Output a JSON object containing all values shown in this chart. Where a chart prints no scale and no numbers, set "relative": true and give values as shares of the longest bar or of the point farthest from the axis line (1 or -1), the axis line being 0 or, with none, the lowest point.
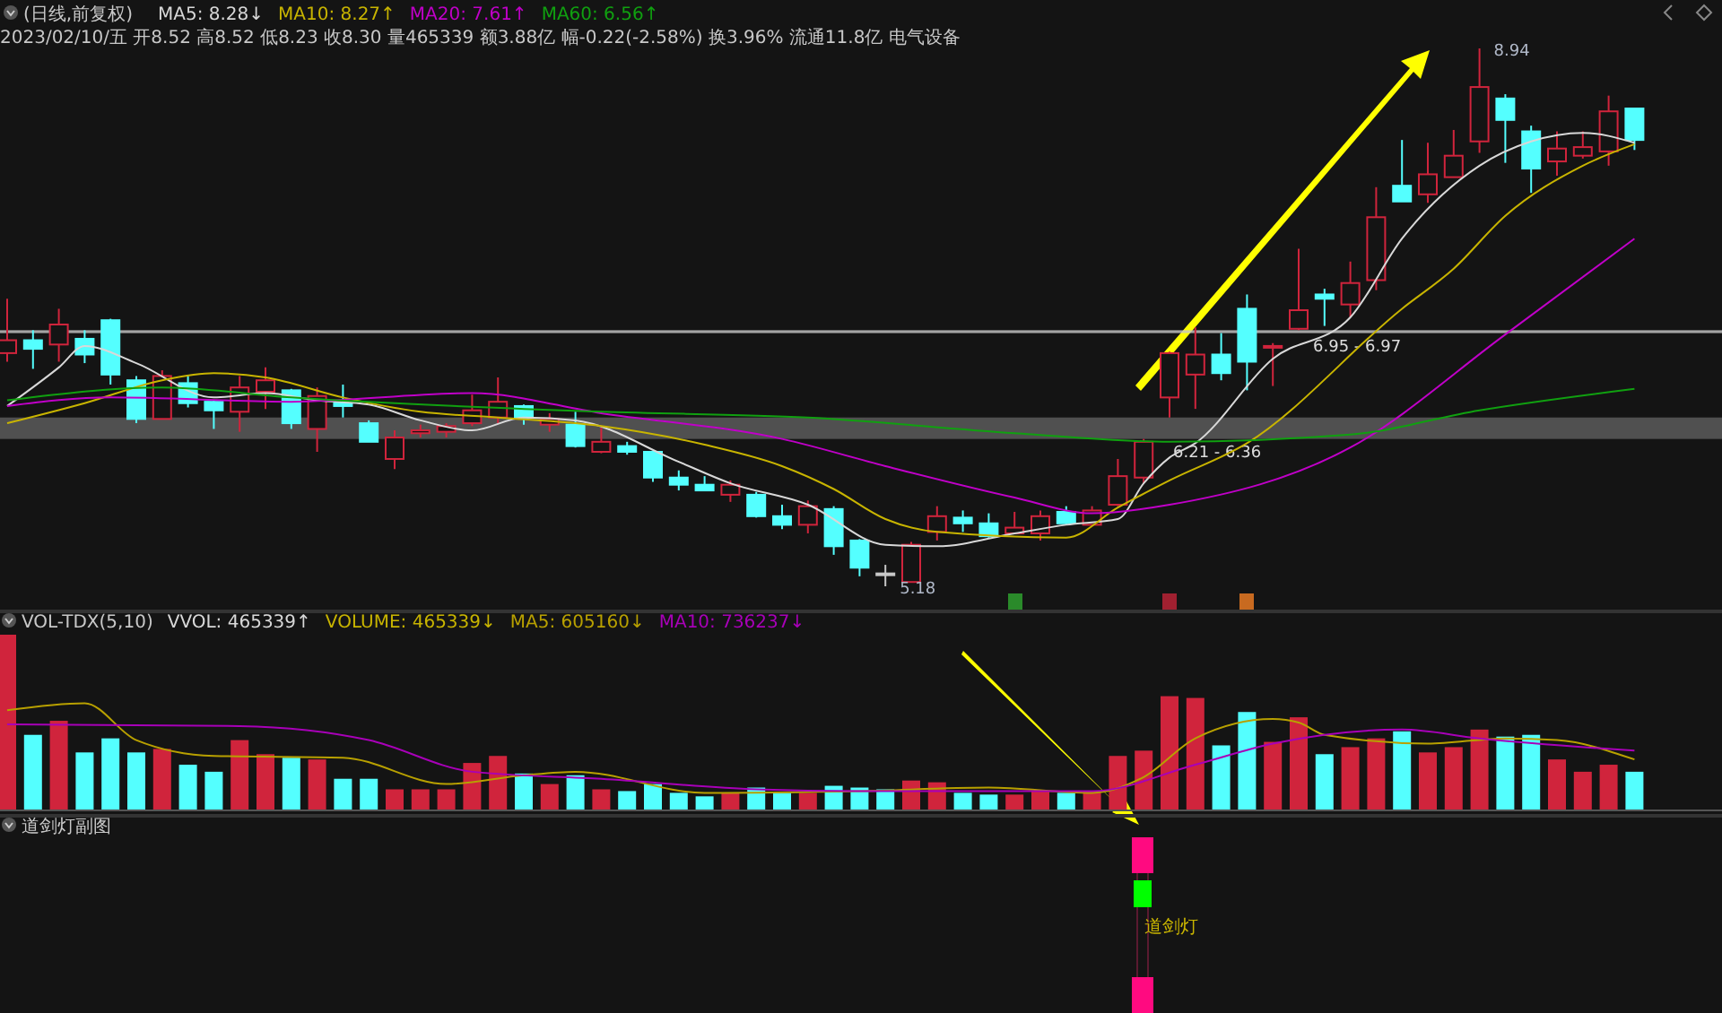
{
  "chart_data": [
    {
      "type": "candlestick",
      "title": "(日线,前复权)",
      "subtitle": "2023/02/10/五 开8.52 高8.52 低8.23 收8.30 量465339 额3.88亿 幅-0.22(-2.58%) 换3.96% 流通11.8亿 电气设备",
      "legend": "top left",
      "categories": [
        null,
        null,
        null,
        null,
        null,
        null,
        null,
        null,
        null,
        null,
        null,
        null,
        null,
        null,
        null,
        null,
        null,
        null,
        null,
        null,
        null,
        null,
        null,
        null,
        null,
        null,
        null,
        null,
        null,
        null,
        null,
        null,
        null,
        null,
        null,
        null,
        null,
        null,
        null,
        null,
        null,
        null,
        null,
        null,
        null,
        null,
        null,
        null,
        null,
        null,
        null,
        null,
        null,
        null,
        null,
        null,
        null,
        null,
        null,
        null,
        null,
        null,
        null,
        null
      ],
      "ohlc": [
        [
          6.81,
          7.19,
          6.75,
          6.9
        ],
        [
          6.9,
          6.97,
          6.7,
          6.84
        ],
        [
          6.87,
          7.12,
          6.75,
          7.01
        ],
        [
          6.91,
          6.97,
          6.74,
          6.8
        ],
        [
          7.04,
          7.05,
          6.59,
          6.66
        ],
        [
          6.62,
          6.65,
          6.32,
          6.35
        ],
        [
          6.35,
          6.69,
          6.35,
          6.65
        ],
        [
          6.6,
          6.65,
          6.43,
          6.46
        ],
        [
          6.47,
          6.48,
          6.28,
          6.41
        ],
        [
          6.4,
          6.65,
          6.26,
          6.57
        ],
        [
          6.54,
          6.71,
          6.42,
          6.62
        ],
        [
          6.55,
          6.56,
          6.28,
          6.32
        ],
        [
          6.28,
          6.57,
          6.12,
          6.51
        ],
        [
          6.46,
          6.59,
          6.36,
          6.44
        ],
        [
          6.32,
          6.34,
          6.19,
          6.19
        ],
        [
          6.07,
          6.27,
          6.0,
          6.22
        ],
        [
          6.25,
          6.31,
          6.22,
          6.27
        ],
        [
          6.26,
          6.32,
          6.22,
          6.3
        ],
        [
          6.32,
          6.52,
          6.3,
          6.41
        ],
        [
          6.36,
          6.64,
          6.32,
          6.47
        ],
        [
          6.44,
          6.45,
          6.31,
          6.36
        ],
        [
          6.31,
          6.39,
          6.26,
          6.35
        ],
        [
          6.31,
          6.4,
          6.15,
          6.16
        ],
        [
          6.12,
          6.29,
          6.11,
          6.19
        ],
        [
          6.16,
          6.19,
          6.1,
          6.12
        ],
        [
          6.12,
          6.12,
          5.91,
          5.94
        ],
        [
          5.94,
          5.99,
          5.85,
          5.89
        ],
        [
          5.89,
          5.95,
          5.85,
          5.85
        ],
        [
          5.82,
          5.92,
          5.77,
          5.89
        ],
        [
          5.82,
          5.84,
          5.66,
          5.67
        ],
        [
          5.67,
          5.75,
          5.58,
          5.61
        ],
        [
          5.61,
          5.78,
          5.55,
          5.74
        ],
        [
          5.72,
          5.74,
          5.4,
          5.46
        ],
        [
          5.5,
          5.51,
          5.25,
          5.31
        ],
        [
          5.27,
          5.33,
          5.18,
          5.27
        ],
        [
          5.21,
          5.49,
          5.21,
          5.47
        ],
        [
          5.56,
          5.74,
          5.5,
          5.67
        ],
        [
          5.66,
          5.71,
          5.56,
          5.62
        ],
        [
          5.62,
          5.69,
          5.52,
          5.53
        ],
        [
          5.55,
          5.7,
          5.55,
          5.59
        ],
        [
          5.55,
          5.71,
          5.5,
          5.67
        ],
        [
          5.7,
          5.74,
          5.61,
          5.62
        ],
        [
          5.61,
          5.74,
          5.61,
          5.71
        ],
        [
          5.75,
          6.07,
          5.74,
          5.95
        ],
        [
          5.94,
          6.21,
          5.9,
          6.19
        ],
        [
          6.5,
          6.82,
          6.36,
          6.81
        ],
        [
          6.66,
          6.99,
          6.42,
          6.8
        ],
        [
          6.8,
          6.95,
          6.62,
          6.67
        ],
        [
          7.12,
          7.22,
          6.55,
          6.75
        ],
        [
          6.85,
          6.88,
          6.58,
          6.86
        ],
        [
          6.98,
          7.54,
          6.97,
          7.11
        ],
        [
          7.22,
          7.26,
          7.0,
          7.19
        ],
        [
          7.15,
          7.45,
          7.06,
          7.3
        ],
        [
          7.32,
          7.97,
          7.25,
          7.76
        ],
        [
          7.98,
          8.3,
          7.87,
          7.87
        ],
        [
          7.92,
          8.28,
          7.86,
          8.06
        ],
        [
          8.04,
          8.37,
          8.04,
          8.19
        ],
        [
          8.29,
          8.94,
          8.21,
          8.67
        ],
        [
          8.59,
          8.62,
          8.14,
          8.44
        ],
        [
          8.36,
          8.4,
          7.93,
          8.1
        ],
        [
          8.15,
          8.36,
          8.05,
          8.24
        ],
        [
          8.19,
          8.36,
          8.17,
          8.25
        ],
        [
          8.22,
          8.61,
          8.12,
          8.5
        ],
        [
          8.52,
          8.52,
          8.23,
          8.3
        ]
      ],
      "series": [
        {
          "type": "line",
          "name": "MA5: 8.28↓",
          "color": "#d8d8d8",
          "values": [
            6.44,
            null,
            6.71,
            6.86,
            null,
            6.74,
            null,
            null,
            6.5,
            null,
            6.53,
            null,
            6.48,
            null,
            6.45,
            null,
            6.34,
            null,
            6.27,
            null,
            6.36,
            null,
            6.34,
            null,
            null,
            null,
            6.05,
            null,
            5.9,
            null,
            null,
            5.75,
            null,
            null,
            5.47,
            null,
            5.46,
            null,
            null,
            5.55,
            null,
            5.61,
            null,
            5.65,
            5.9,
            6.08,
            6.18,
            null,
            null,
            6.77,
            null,
            null,
            7.06,
            null,
            7.61,
            null,
            null,
            8.12,
            null,
            8.29,
            null,
            8.35,
            null,
            8.28
          ]
        },
        {
          "type": "line",
          "name": "MA10: 8.27↑",
          "color": "#c8b400",
          "values": [
            6.32,
            null,
            null,
            6.46,
            null,
            null,
            6.62,
            null,
            6.67,
            null,
            6.64,
            null,
            null,
            6.5,
            null,
            null,
            6.4,
            null,
            null,
            6.36,
            null,
            null,
            null,
            6.3,
            null,
            null,
            null,
            6.17,
            null,
            null,
            6.02,
            null,
            5.86,
            null,
            5.65,
            null,
            5.56,
            null,
            null,
            null,
            null,
            5.52,
            null,
            5.73,
            null,
            5.92,
            null,
            null,
            6.18,
            null,
            null,
            null,
            null,
            null,
            7.12,
            null,
            7.4,
            null,
            7.77,
            null,
            null,
            8.12,
            null,
            8.27
          ]
        },
        {
          "type": "line",
          "name": "MA20: 7.61↑",
          "color": "#c000c8",
          "values": [
            6.44,
            null,
            null,
            null,
            6.5,
            null,
            null,
            null,
            null,
            null,
            null,
            6.47,
            null,
            null,
            null,
            null,
            null,
            null,
            6.53,
            null,
            null,
            null,
            null,
            6.39,
            null,
            null,
            null,
            null,
            null,
            null,
            6.21,
            null,
            null,
            null,
            6.02,
            null,
            null,
            null,
            null,
            5.8,
            null,
            null,
            5.69,
            null,
            null,
            5.75,
            null,
            null,
            null,
            null,
            null,
            null,
            6.15,
            null,
            null,
            null,
            null,
            null,
            6.94,
            null,
            null,
            null,
            null,
            7.61
          ]
        },
        {
          "type": "line",
          "name": "MA60: 6.56↑",
          "color": "#10a010",
          "values": [
            6.48,
            null,
            null,
            null,
            null,
            null,
            6.57,
            null,
            null,
            null,
            null,
            6.5,
            null,
            null,
            null,
            null,
            null,
            null,
            null,
            null,
            null,
            null,
            null,
            6.4,
            null,
            null,
            null,
            null,
            null,
            null,
            null,
            6.36,
            null,
            null,
            null,
            null,
            null,
            null,
            null,
            6.25,
            null,
            null,
            null,
            null,
            null,
            6.19,
            null,
            null,
            null,
            null,
            null,
            null,
            6.24,
            null,
            null,
            null,
            null,
            6.41,
            null,
            null,
            null,
            null,
            null,
            6.56
          ]
        }
      ],
      "annotations": [
        "8.94",
        "5.18"
      ],
      "bands": [
        {
          "axis": "y",
          "from": 6.21,
          "to": 6.36,
          "label": "6.21 - 6.36",
          "color": "#9a9a9a"
        },
        {
          "axis": "y",
          "from": 6.95,
          "to": 6.97,
          "label": "6.95 - 6.97",
          "color": "#c8c8c8"
        }
      ]
    },
    {
      "type": "bar",
      "title": "VOL-TDX(5,10)",
      "relative": true,
      "annotations": [
        "VVOL: 465339↑",
        "VOLUME: 465339↓"
      ],
      "categories": [
        null,
        null,
        null,
        null,
        null,
        null,
        null,
        null,
        null,
        null,
        null,
        null,
        null,
        null,
        null,
        null,
        null,
        null,
        null,
        null,
        null,
        null,
        null,
        null,
        null,
        null,
        null,
        null,
        null,
        null,
        null,
        null,
        null,
        null,
        null,
        null,
        null,
        null,
        null,
        null,
        null,
        null,
        null,
        null,
        null,
        null,
        null,
        null,
        null,
        null,
        null,
        null,
        null,
        null,
        null,
        null,
        null,
        null,
        null,
        null,
        null,
        null,
        null,
        null
      ],
      "series": [
        {
          "type": "bar",
          "values": [
            1.0,
            0.43,
            0.51,
            0.33,
            0.41,
            0.33,
            0.35,
            0.26,
            0.22,
            0.4,
            0.32,
            0.3,
            0.29,
            0.18,
            0.18,
            0.12,
            0.12,
            0.12,
            0.27,
            0.31,
            0.21,
            0.15,
            0.2,
            0.12,
            0.11,
            0.15,
            0.1,
            0.08,
            0.1,
            0.13,
            0.1,
            0.1,
            0.14,
            0.13,
            0.12,
            0.17,
            0.16,
            0.1,
            0.09,
            0.09,
            0.11,
            0.1,
            0.11,
            0.31,
            0.34,
            0.65,
            0.64,
            0.37,
            0.56,
            0.39,
            0.53,
            0.32,
            0.36,
            0.41,
            0.45,
            0.33,
            0.36,
            0.46,
            0.42,
            0.43,
            0.29,
            0.22,
            0.26,
            0.22
          ],
          "colors": [
            "#d0243c",
            "#54ffff",
            "#d0243c",
            "#54ffff",
            "#54ffff",
            "#54ffff",
            "#d0243c",
            "#54ffff",
            "#54ffff",
            "#d0243c",
            "#d0243c",
            "#54ffff",
            "#d0243c",
            "#54ffff",
            "#54ffff",
            "#d0243c",
            "#d0243c",
            "#d0243c",
            "#d0243c",
            "#d0243c",
            "#54ffff",
            "#d0243c",
            "#54ffff",
            "#d0243c",
            "#54ffff",
            "#54ffff",
            "#54ffff",
            "#54ffff",
            "#d0243c",
            "#54ffff",
            "#54ffff",
            "#d0243c",
            "#54ffff",
            "#54ffff",
            "#54ffff",
            "#d0243c",
            "#d0243c",
            "#54ffff",
            "#54ffff",
            "#d0243c",
            "#d0243c",
            "#54ffff",
            "#d0243c",
            "#d0243c",
            "#d0243c",
            "#d0243c",
            "#d0243c",
            "#54ffff",
            "#54ffff",
            "#d0243c",
            "#d0243c",
            "#54ffff",
            "#d0243c",
            "#d0243c",
            "#54ffff",
            "#d0243c",
            "#d0243c",
            "#d0243c",
            "#54ffff",
            "#54ffff",
            "#d0243c",
            "#d0243c",
            "#d0243c",
            "#54ffff"
          ]
        },
        {
          "type": "line",
          "name": "MA5: 605160↓",
          "color": "#b8a000",
          "values": [
            0.57,
            null,
            null,
            0.61,
            null,
            0.4,
            null,
            null,
            0.31,
            null,
            null,
            null,
            null,
            0.3,
            null,
            null,
            null,
            0.15,
            null,
            null,
            0.2,
            null,
            0.22,
            null,
            null,
            null,
            null,
            0.1,
            null,
            null,
            null,
            null,
            null,
            0.11,
            null,
            null,
            null,
            null,
            0.13,
            null,
            null,
            null,
            0.1,
            null,
            0.19,
            null,
            0.41,
            null,
            null,
            0.52,
            0.5,
            0.43,
            null,
            null,
            null,
            0.38,
            null,
            null,
            0.41,
            null,
            0.4,
            null,
            null,
            0.29
          ]
        },
        {
          "type": "line",
          "name": "MA10: 736237↓",
          "color": "#a800b8",
          "values": [
            0.49,
            null,
            null,
            null,
            null,
            null,
            null,
            null,
            null,
            0.48,
            null,
            null,
            null,
            null,
            0.4,
            null,
            null,
            null,
            0.22,
            null,
            null,
            null,
            null,
            0.18,
            null,
            null,
            null,
            null,
            null,
            0.12,
            null,
            null,
            null,
            0.11,
            null,
            null,
            null,
            null,
            null,
            null,
            null,
            null,
            0.11,
            null,
            null,
            null,
            0.26,
            null,
            null,
            0.38,
            null,
            null,
            null,
            null,
            0.46,
            null,
            null,
            0.41,
            null,
            null,
            null,
            null,
            null,
            0.34
          ]
        }
      ]
    },
    {
      "type": "other",
      "title": "道剑灯副图",
      "annotations": [
        "道剑灯"
      ]
    }
  ]
}
